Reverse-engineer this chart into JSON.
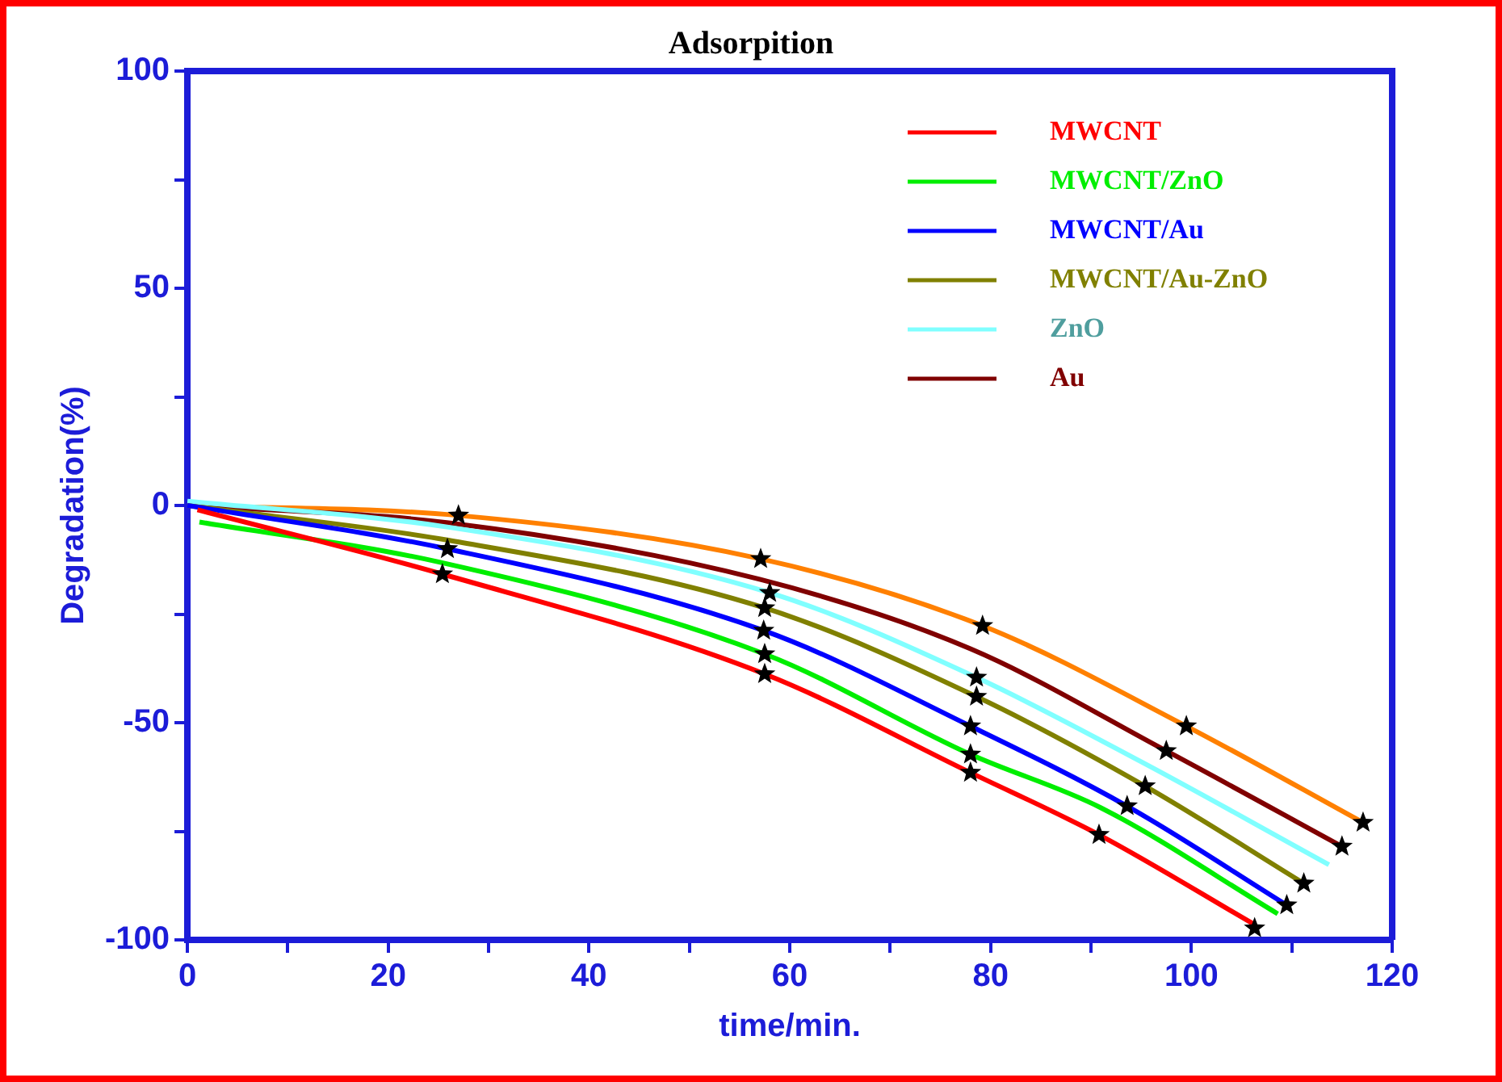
{
  "chart_data": {
    "type": "line",
    "title": "Adsorpition",
    "xlabel": "time/min.",
    "ylabel": "Degradation(%)",
    "xlim": [
      0,
      120
    ],
    "ylim": [
      -100,
      100
    ],
    "xticks": [
      0,
      {
        "value": 10,
        "label": null
      },
      20,
      {
        "value": 30,
        "label": null
      },
      40,
      {
        "value": 50,
        "label": null
      },
      60,
      {
        "value": 70,
        "label": null
      },
      80,
      {
        "value": 90,
        "label": null
      },
      100,
      {
        "value": 110,
        "label": null
      },
      120
    ],
    "yticks": [
      -100,
      {
        "value": -75,
        "label": null
      },
      -50,
      {
        "value": -25,
        "label": null
      },
      0,
      {
        "value": 25,
        "label": null
      },
      50,
      {
        "value": 75,
        "label": null
      },
      100
    ],
    "grid": false,
    "legend": "top right",
    "line_style": "solid",
    "marker": "none",
    "series": [
      {
        "name": "MWCNT",
        "color": "#ff0000",
        "x": [
          1,
          25.4,
          57.5,
          78,
          90.8,
          106.3
        ],
        "values": [
          -1,
          -15.8,
          -38.8,
          -61.5,
          -75.8,
          -96.5
        ]
      },
      {
        "name": "MWCNT/ZnO",
        "color": "#00ee00",
        "x": [
          1.2,
          25,
          57.5,
          78,
          91,
          108.6
        ],
        "values": [
          -3.8,
          -13,
          -34.2,
          -57.3,
          -69.6,
          -94
        ]
      },
      {
        "name": "MWCNT/Au",
        "color": "#0000ff",
        "x": [
          0,
          25.9,
          57.4,
          78,
          93.6,
          109.5
        ],
        "values": [
          0,
          -10,
          -28.8,
          -50.8,
          -69.2,
          -92
        ]
      },
      {
        "name": "MWCNT/Au-ZnO",
        "color": "#808000",
        "x": [
          0,
          26,
          57.5,
          78.6,
          95.4,
          111.2
        ],
        "values": [
          0,
          -8,
          -23.6,
          -44,
          -64.6,
          -87
        ]
      },
      {
        "name": "ZnO",
        "color": "#80ffff",
        "x": [
          0,
          26,
          58,
          78.6,
          95,
          113.7
        ],
        "values": [
          1,
          -5,
          -20.1,
          -39.6,
          -59,
          -82.7
        ]
      },
      {
        "name": "Au",
        "color": "#800000",
        "x": [
          0,
          26,
          57,
          78,
          97.5,
          115
        ],
        "values": [
          0,
          -4,
          -17,
          -33,
          -56.5,
          -78.5
        ]
      },
      {
        "color": "#ff8000",
        "x": [
          0,
          27,
          57.1,
          79.2,
          99.5,
          117.1
        ],
        "values": [
          0,
          -2.3,
          -12.3,
          -27.7,
          -50.8,
          -73
        ]
      },
      {
        "type": "scatter",
        "marker": "star",
        "color": "#000000",
        "x": [
          25.4,
          25.9,
          27,
          57.5,
          57.5,
          57.4,
          57.5,
          58,
          57.1,
          78,
          78,
          78,
          78.6,
          78.6,
          79.2,
          90.8,
          93.6,
          95.4,
          97.5,
          99.5,
          106.3,
          109.5,
          111.2,
          115,
          117.1
        ],
        "values": [
          -15.8,
          -10,
          -2.3,
          -38.8,
          -34.2,
          -28.8,
          -23.6,
          -20.1,
          -12.3,
          -61.5,
          -57.3,
          -50.8,
          -44,
          -39.6,
          -27.7,
          -75.8,
          -69.2,
          -64.6,
          -56.5,
          -50.8,
          -97.3,
          -92,
          -87,
          -78.5,
          -73
        ]
      }
    ]
  }
}
